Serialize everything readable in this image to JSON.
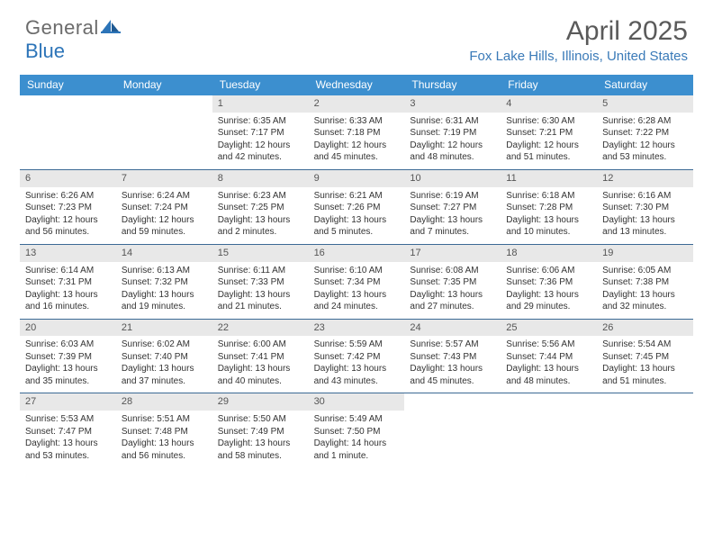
{
  "brand": {
    "part1": "General",
    "part2": "Blue"
  },
  "title": "April 2025",
  "location": "Fox Lake Hills, Illinois, United States",
  "colors": {
    "header_bg": "#3c8fcf",
    "week_border": "#3c6a95",
    "daynum_bg": "#e8e8e8",
    "brand_gray": "#6b6b6b",
    "brand_blue": "#2c74b8",
    "location_color": "#3a7ab8"
  },
  "weekdays": [
    "Sunday",
    "Monday",
    "Tuesday",
    "Wednesday",
    "Thursday",
    "Friday",
    "Saturday"
  ],
  "first_weekday_index": 2,
  "days": [
    {
      "n": 1,
      "sunrise": "6:35 AM",
      "sunset": "7:17 PM",
      "daylight": "12 hours and 42 minutes."
    },
    {
      "n": 2,
      "sunrise": "6:33 AM",
      "sunset": "7:18 PM",
      "daylight": "12 hours and 45 minutes."
    },
    {
      "n": 3,
      "sunrise": "6:31 AM",
      "sunset": "7:19 PM",
      "daylight": "12 hours and 48 minutes."
    },
    {
      "n": 4,
      "sunrise": "6:30 AM",
      "sunset": "7:21 PM",
      "daylight": "12 hours and 51 minutes."
    },
    {
      "n": 5,
      "sunrise": "6:28 AM",
      "sunset": "7:22 PM",
      "daylight": "12 hours and 53 minutes."
    },
    {
      "n": 6,
      "sunrise": "6:26 AM",
      "sunset": "7:23 PM",
      "daylight": "12 hours and 56 minutes."
    },
    {
      "n": 7,
      "sunrise": "6:24 AM",
      "sunset": "7:24 PM",
      "daylight": "12 hours and 59 minutes."
    },
    {
      "n": 8,
      "sunrise": "6:23 AM",
      "sunset": "7:25 PM",
      "daylight": "13 hours and 2 minutes."
    },
    {
      "n": 9,
      "sunrise": "6:21 AM",
      "sunset": "7:26 PM",
      "daylight": "13 hours and 5 minutes."
    },
    {
      "n": 10,
      "sunrise": "6:19 AM",
      "sunset": "7:27 PM",
      "daylight": "13 hours and 7 minutes."
    },
    {
      "n": 11,
      "sunrise": "6:18 AM",
      "sunset": "7:28 PM",
      "daylight": "13 hours and 10 minutes."
    },
    {
      "n": 12,
      "sunrise": "6:16 AM",
      "sunset": "7:30 PM",
      "daylight": "13 hours and 13 minutes."
    },
    {
      "n": 13,
      "sunrise": "6:14 AM",
      "sunset": "7:31 PM",
      "daylight": "13 hours and 16 minutes."
    },
    {
      "n": 14,
      "sunrise": "6:13 AM",
      "sunset": "7:32 PM",
      "daylight": "13 hours and 19 minutes."
    },
    {
      "n": 15,
      "sunrise": "6:11 AM",
      "sunset": "7:33 PM",
      "daylight": "13 hours and 21 minutes."
    },
    {
      "n": 16,
      "sunrise": "6:10 AM",
      "sunset": "7:34 PM",
      "daylight": "13 hours and 24 minutes."
    },
    {
      "n": 17,
      "sunrise": "6:08 AM",
      "sunset": "7:35 PM",
      "daylight": "13 hours and 27 minutes."
    },
    {
      "n": 18,
      "sunrise": "6:06 AM",
      "sunset": "7:36 PM",
      "daylight": "13 hours and 29 minutes."
    },
    {
      "n": 19,
      "sunrise": "6:05 AM",
      "sunset": "7:38 PM",
      "daylight": "13 hours and 32 minutes."
    },
    {
      "n": 20,
      "sunrise": "6:03 AM",
      "sunset": "7:39 PM",
      "daylight": "13 hours and 35 minutes."
    },
    {
      "n": 21,
      "sunrise": "6:02 AM",
      "sunset": "7:40 PM",
      "daylight": "13 hours and 37 minutes."
    },
    {
      "n": 22,
      "sunrise": "6:00 AM",
      "sunset": "7:41 PM",
      "daylight": "13 hours and 40 minutes."
    },
    {
      "n": 23,
      "sunrise": "5:59 AM",
      "sunset": "7:42 PM",
      "daylight": "13 hours and 43 minutes."
    },
    {
      "n": 24,
      "sunrise": "5:57 AM",
      "sunset": "7:43 PM",
      "daylight": "13 hours and 45 minutes."
    },
    {
      "n": 25,
      "sunrise": "5:56 AM",
      "sunset": "7:44 PM",
      "daylight": "13 hours and 48 minutes."
    },
    {
      "n": 26,
      "sunrise": "5:54 AM",
      "sunset": "7:45 PM",
      "daylight": "13 hours and 51 minutes."
    },
    {
      "n": 27,
      "sunrise": "5:53 AM",
      "sunset": "7:47 PM",
      "daylight": "13 hours and 53 minutes."
    },
    {
      "n": 28,
      "sunrise": "5:51 AM",
      "sunset": "7:48 PM",
      "daylight": "13 hours and 56 minutes."
    },
    {
      "n": 29,
      "sunrise": "5:50 AM",
      "sunset": "7:49 PM",
      "daylight": "13 hours and 58 minutes."
    },
    {
      "n": 30,
      "sunrise": "5:49 AM",
      "sunset": "7:50 PM",
      "daylight": "14 hours and 1 minute."
    }
  ],
  "labels": {
    "sunrise": "Sunrise: ",
    "sunset": "Sunset: ",
    "daylight": "Daylight: "
  }
}
